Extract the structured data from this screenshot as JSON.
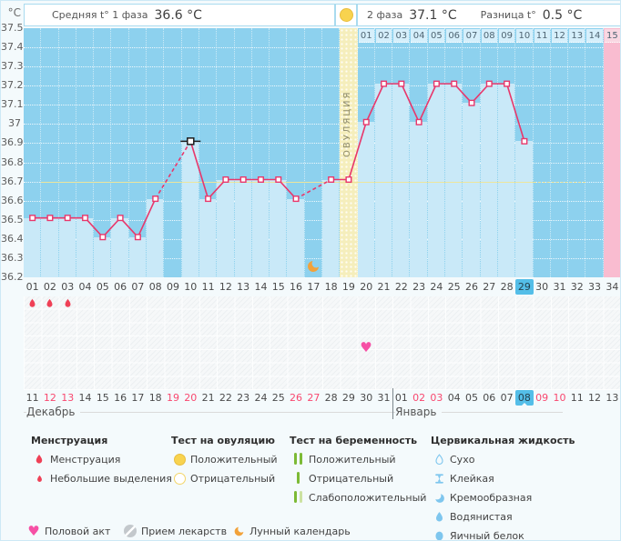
{
  "header": {
    "unit_label": "°C",
    "phase1_label": "Средняя t° 1 фаза",
    "phase1_value": "36.6 °C",
    "phase2_label": "2 фаза",
    "phase2_value": "37.1 °C",
    "diff_label": "Разница t°",
    "diff_value": "0.5 °C"
  },
  "chart_data": {
    "type": "line",
    "ylabel": "°C",
    "ylim": [
      36.2,
      37.5
    ],
    "ytick_step": 0.1,
    "grid": true,
    "coverline": 36.7,
    "ovulation_day": 19,
    "ovulation_column_label": "ОВУЛЯЦИЯ",
    "cursor_day": 10,
    "selected_day": 29,
    "x_days": [
      "01",
      "02",
      "03",
      "04",
      "05",
      "06",
      "07",
      "08",
      "09",
      "10",
      "11",
      "12",
      "13",
      "14",
      "15",
      "16",
      "17",
      "18",
      "19",
      "20",
      "21",
      "22",
      "23",
      "24",
      "25",
      "26",
      "27",
      "28",
      "29",
      "30",
      "31",
      "32",
      "33",
      "34"
    ],
    "temps": [
      36.51,
      36.51,
      36.51,
      36.51,
      36.41,
      36.51,
      36.41,
      36.61,
      null,
      36.91,
      36.61,
      36.71,
      36.71,
      36.71,
      36.71,
      36.61,
      null,
      36.71,
      36.71,
      37.01,
      37.21,
      37.21,
      37.01,
      37.21,
      37.21,
      37.11,
      37.21,
      37.21,
      36.91,
      null,
      null,
      null,
      null,
      null
    ],
    "dpo_labels": [
      "01",
      "02",
      "03",
      "04",
      "05",
      "06",
      "07",
      "08",
      "09",
      "10",
      "11",
      "12",
      "13",
      "14",
      "15"
    ],
    "pink_day": 34,
    "dates": [
      "11",
      "12",
      "13",
      "14",
      "15",
      "16",
      "17",
      "18",
      "19",
      "20",
      "21",
      "22",
      "23",
      "24",
      "25",
      "26",
      "27",
      "28",
      "29",
      "30",
      "31",
      "01",
      "02",
      "03",
      "04",
      "05",
      "06",
      "07",
      "08",
      "09",
      "10",
      "11",
      "12",
      "13"
    ],
    "weekend_days": [
      2,
      3,
      9,
      10,
      16,
      17,
      23,
      24,
      30,
      31
    ],
    "months": [
      {
        "label": "Декабрь",
        "start_day": 1
      },
      {
        "label": "Январь",
        "start_day": 22
      }
    ],
    "events": {
      "menstruation_days": [
        1,
        2,
        3
      ],
      "intercourse_days": [
        20
      ],
      "lunar_days": [
        17
      ],
      "ovulation_test_positive_day": 19
    }
  },
  "legend": {
    "columns": [
      {
        "title": "Менструация",
        "items": [
          {
            "icon": "drop",
            "label": "Менструация"
          },
          {
            "icon": "drop-small",
            "label": "Небольшие выделения"
          }
        ]
      },
      {
        "title": "Тест на овуляцию",
        "items": [
          {
            "icon": "circle-filled",
            "label": "Положительный"
          },
          {
            "icon": "circle-outline",
            "label": "Отрицательный"
          }
        ]
      },
      {
        "title": "Тест на беременность",
        "items": [
          {
            "icon": "bars-positive",
            "label": "Положительный"
          },
          {
            "icon": "bar-negative",
            "label": "Отрицательный"
          },
          {
            "icon": "bars-weak",
            "label": "Слабоположительный"
          }
        ]
      },
      {
        "title": "Цервикальная жидкость",
        "items": [
          {
            "icon": "drop-outline",
            "label": "Сухо"
          },
          {
            "icon": "sticky",
            "label": "Клейкая"
          },
          {
            "icon": "creamy",
            "label": "Кремообразная"
          },
          {
            "icon": "drop-filled",
            "label": "Водянистая"
          },
          {
            "icon": "eggwhite",
            "label": "Яичный белок"
          }
        ]
      }
    ],
    "extra": [
      {
        "icon": "heart",
        "label": "Половой акт"
      },
      {
        "icon": "pill",
        "label": "Прием лекарств"
      },
      {
        "icon": "moon",
        "label": "Лунный календарь"
      }
    ]
  },
  "colors": {
    "chart_bg": "#8DD1EE",
    "bar": "#C9E9F8",
    "ovulation_column": "#F5EEBC",
    "pink_column": "#F9BCD0",
    "line": "#E8376B",
    "coverline": "#EDE59B",
    "highlight": "#54BEE8",
    "weekend_date": "#F8486F",
    "menstruation": "#EF4056",
    "heart": "#F650A5",
    "moon": "#F2A23A",
    "test_green": "#7CBA35",
    "cervical_blue": "#7EC6EE",
    "positive_test_yellow": "#F8D34F"
  }
}
